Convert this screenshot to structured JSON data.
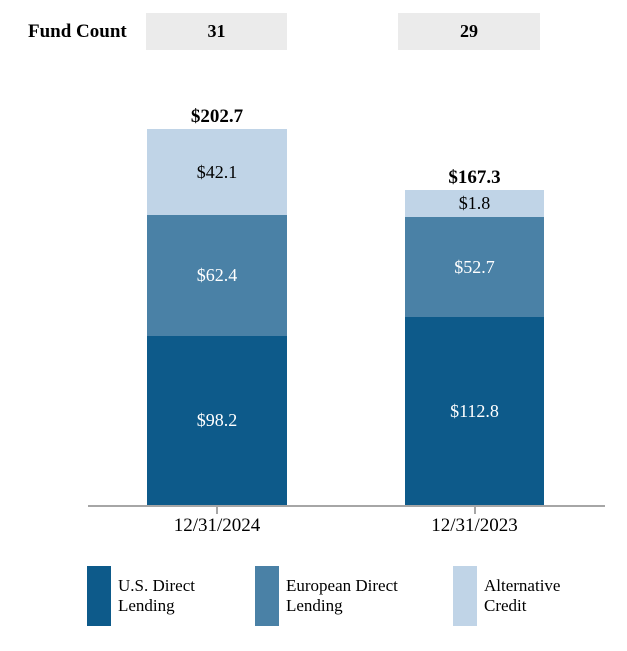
{
  "chart_data": {
    "type": "bar",
    "stacked": true,
    "categories": [
      "12/31/2024",
      "12/31/2023"
    ],
    "series": [
      {
        "name": "U.S. Direct Lending",
        "values": [
          98.2,
          112.8
        ],
        "color": "#0d5a8a"
      },
      {
        "name": "European Direct Lending",
        "values": [
          62.4,
          52.7
        ],
        "color": "#4a81a6"
      },
      {
        "name": "Alternative Credit",
        "values": [
          42.1,
          1.8
        ],
        "color": "#c0d4e7"
      }
    ],
    "totals": [
      202.7,
      167.3
    ],
    "value_prefix": "$",
    "grid": false,
    "legend_position": "bottom",
    "value_labels": "inside-segments",
    "total_labels": "above-bars"
  },
  "header": {
    "fund_count_label": "Fund Count",
    "fund_counts": [
      "31",
      "29"
    ]
  },
  "bars": [
    {
      "total_label": "$202.7",
      "x_label": "12/31/2024",
      "segments": [
        {
          "series": "Alternative Credit",
          "label": "$42.1"
        },
        {
          "series": "European Direct Lending",
          "label": "$62.4"
        },
        {
          "series": "U.S. Direct Lending",
          "label": "$98.2"
        }
      ]
    },
    {
      "total_label": "$167.3",
      "x_label": "12/31/2023",
      "segments": [
        {
          "series": "Alternative Credit",
          "label": "$1.8"
        },
        {
          "series": "European Direct Lending",
          "label": "$52.7"
        },
        {
          "series": "U.S. Direct Lending",
          "label": "$112.8"
        }
      ]
    }
  ],
  "legend": {
    "items": [
      {
        "line1": "U.S. Direct",
        "line2": "Lending",
        "color": "#0d5a8a"
      },
      {
        "line1": "European Direct",
        "line2": "Lending",
        "color": "#4a81a6"
      },
      {
        "line1": "Alternative",
        "line2": "Credit",
        "color": "#c0d4e7"
      }
    ]
  },
  "colors": {
    "us_direct_lending": "#0d5a8a",
    "european_direct_lending": "#4a81a6",
    "alternative_credit": "#c0d4e7",
    "fund_count_box_bg": "#ebebeb",
    "axis": "#a6a6a6",
    "background": "#ffffff"
  }
}
